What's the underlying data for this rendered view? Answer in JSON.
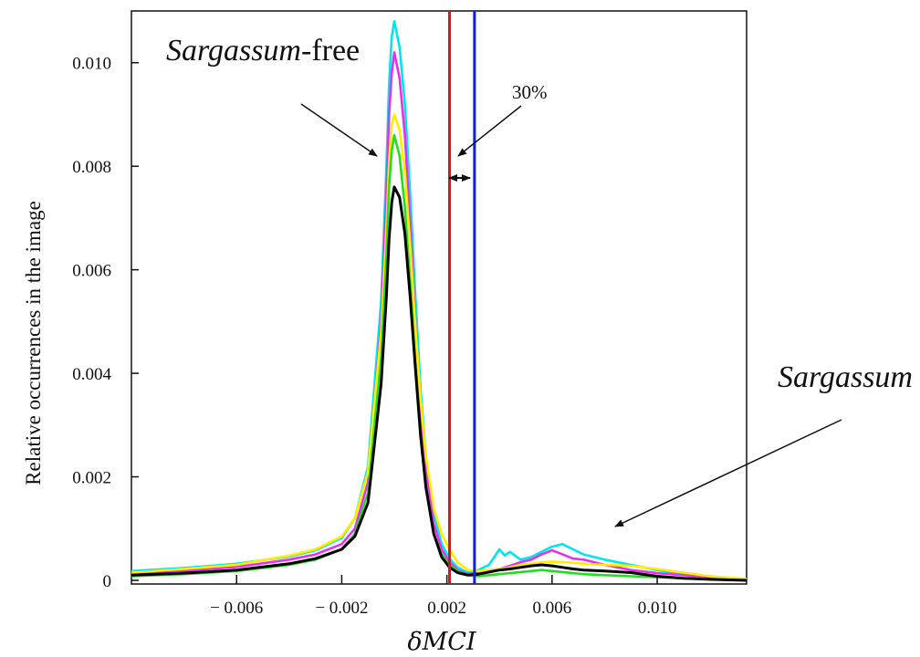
{
  "chart_data": {
    "type": "line",
    "title": "",
    "xlabel": "δMCI",
    "ylabel": "Relative occurrences in the image",
    "xlim": [
      -0.01,
      0.0134
    ],
    "ylim": [
      0,
      0.011
    ],
    "xticks": [
      -0.006,
      -0.002,
      0.002,
      0.006,
      0.01
    ],
    "xtick_labels": [
      "− 0.006",
      "− 0.002",
      "0.002",
      "0.006",
      "0.010"
    ],
    "yticks": [
      0,
      0.002,
      0.004,
      0.006,
      0.008,
      0.01
    ],
    "ytick_labels": [
      "0",
      "0.002",
      "0.004",
      "0.006",
      "0.008",
      "0.010"
    ],
    "grid": false,
    "series": [
      {
        "color": "#00e5ee",
        "width": 2.6,
        "x": [
          -0.01,
          -0.008,
          -0.006,
          -0.004,
          -0.003,
          -0.002,
          -0.0015,
          -0.001,
          -0.0005,
          -0.0003,
          -0.0002,
          -0.0001,
          0.0,
          0.0002,
          0.0004,
          0.0006,
          0.0008,
          0.001,
          0.0012,
          0.0015,
          0.0018,
          0.0021,
          0.0024,
          0.0028,
          0.0032,
          0.0036,
          0.004,
          0.0042,
          0.0044,
          0.0048,
          0.0052,
          0.0056,
          0.006,
          0.0064,
          0.0068,
          0.0072,
          0.008,
          0.009,
          0.01,
          0.011,
          0.012,
          0.0134
        ],
        "y": [
          0.00018,
          0.00024,
          0.00032,
          0.00046,
          0.00058,
          0.00082,
          0.0012,
          0.0022,
          0.0054,
          0.008,
          0.0096,
          0.0105,
          0.0108,
          0.0103,
          0.0092,
          0.0075,
          0.0055,
          0.0037,
          0.0024,
          0.0013,
          0.0007,
          0.00042,
          0.00025,
          0.00015,
          0.0002,
          0.0003,
          0.0006,
          0.00048,
          0.00055,
          0.0004,
          0.00045,
          0.00055,
          0.00065,
          0.0007,
          0.0006,
          0.0005,
          0.0004,
          0.0003,
          0.0002,
          0.00012,
          8e-05,
          2e-05
        ]
      },
      {
        "color": "#e830e8",
        "width": 2.6,
        "x": [
          -0.01,
          -0.008,
          -0.006,
          -0.004,
          -0.003,
          -0.002,
          -0.0015,
          -0.001,
          -0.0005,
          -0.0003,
          -0.0002,
          -0.0001,
          0.0,
          0.0002,
          0.0004,
          0.0006,
          0.0008,
          0.001,
          0.0012,
          0.0015,
          0.0018,
          0.0021,
          0.0024,
          0.0028,
          0.0032,
          0.0036,
          0.004,
          0.0044,
          0.0048,
          0.0052,
          0.0056,
          0.006,
          0.0064,
          0.0068,
          0.0072,
          0.008,
          0.009,
          0.01,
          0.011,
          0.012,
          0.0134
        ],
        "y": [
          0.00012,
          0.00018,
          0.00026,
          0.0004,
          0.0005,
          0.0007,
          0.001,
          0.0019,
          0.005,
          0.0075,
          0.009,
          0.0098,
          0.0102,
          0.0097,
          0.0086,
          0.0069,
          0.005,
          0.0033,
          0.0021,
          0.0011,
          0.0006,
          0.00035,
          0.0002,
          0.00012,
          0.00015,
          0.0002,
          0.00022,
          0.00028,
          0.00035,
          0.0004,
          0.0005,
          0.00058,
          0.0005,
          0.00042,
          0.0004,
          0.0003,
          0.0002,
          0.00014,
          0.0001,
          6e-05,
          2e-05
        ]
      },
      {
        "color": "#ffee00",
        "width": 2.6,
        "x": [
          -0.01,
          -0.008,
          -0.006,
          -0.004,
          -0.003,
          -0.002,
          -0.0015,
          -0.001,
          -0.0005,
          -0.0003,
          -0.0002,
          -0.0001,
          0.0,
          0.0002,
          0.0004,
          0.0006,
          0.0008,
          0.001,
          0.0012,
          0.0015,
          0.0018,
          0.0021,
          0.0024,
          0.0028,
          0.0032,
          0.0036,
          0.004,
          0.0044,
          0.0048,
          0.0052,
          0.0056,
          0.006,
          0.0064,
          0.0068,
          0.0072,
          0.008,
          0.009,
          0.01,
          0.011,
          0.012,
          0.0134
        ],
        "y": [
          0.00015,
          0.00022,
          0.0003,
          0.00048,
          0.0006,
          0.00085,
          0.0012,
          0.0021,
          0.0048,
          0.0068,
          0.0081,
          0.0088,
          0.009,
          0.0087,
          0.0079,
          0.0065,
          0.0049,
          0.0035,
          0.0024,
          0.0014,
          0.0009,
          0.0006,
          0.00035,
          0.0002,
          0.00018,
          0.0002,
          0.00022,
          0.00025,
          0.0003,
          0.00032,
          0.00035,
          0.00036,
          0.00035,
          0.00034,
          0.00032,
          0.0003,
          0.00028,
          0.00022,
          0.00015,
          8e-05,
          3e-05
        ]
      },
      {
        "color": "#22dd22",
        "width": 2.6,
        "x": [
          -0.01,
          -0.008,
          -0.006,
          -0.004,
          -0.003,
          -0.002,
          -0.0015,
          -0.001,
          -0.0005,
          -0.0003,
          -0.0002,
          -0.0001,
          0.0,
          0.0002,
          0.0004,
          0.0006,
          0.0008,
          0.001,
          0.0012,
          0.0015,
          0.0018,
          0.0021,
          0.0024,
          0.0028,
          0.0032,
          0.0036,
          0.004,
          0.0044,
          0.0048,
          0.0052,
          0.0056,
          0.006,
          0.0064,
          0.0068,
          0.0072,
          0.008,
          0.009,
          0.01,
          0.011,
          0.012,
          0.0134
        ],
        "y": [
          8e-05,
          0.00012,
          0.00018,
          0.0003,
          0.0004,
          0.0006,
          0.0009,
          0.0017,
          0.0043,
          0.0063,
          0.0076,
          0.0083,
          0.0086,
          0.0082,
          0.0072,
          0.0058,
          0.0042,
          0.0028,
          0.0018,
          0.0009,
          0.0005,
          0.0003,
          0.00018,
          0.0001,
          8e-05,
          0.0001,
          0.00012,
          0.00014,
          0.00016,
          0.00018,
          0.0002,
          0.00018,
          0.00016,
          0.00014,
          0.00012,
          0.0001,
          8e-05,
          6e-05,
          4e-05,
          2e-05,
          0.0
        ]
      },
      {
        "color": "#000000",
        "width": 3,
        "x": [
          -0.01,
          -0.008,
          -0.006,
          -0.004,
          -0.003,
          -0.002,
          -0.0015,
          -0.001,
          -0.0005,
          -0.0003,
          -0.0002,
          -0.0001,
          0.0,
          0.0002,
          0.0004,
          0.0006,
          0.0008,
          0.001,
          0.0012,
          0.0015,
          0.0018,
          0.0021,
          0.0024,
          0.0028,
          0.0032,
          0.0036,
          0.004,
          0.0044,
          0.0048,
          0.0052,
          0.0056,
          0.006,
          0.0064,
          0.0068,
          0.0072,
          0.008,
          0.009,
          0.01,
          0.011,
          0.012,
          0.0134
        ],
        "y": [
          0.0001,
          0.00014,
          0.0002,
          0.00032,
          0.00042,
          0.0006,
          0.00085,
          0.0015,
          0.0038,
          0.0055,
          0.0066,
          0.0073,
          0.0076,
          0.0074,
          0.0067,
          0.0055,
          0.0041,
          0.0028,
          0.0018,
          0.0009,
          0.00045,
          0.00025,
          0.00015,
          0.0001,
          0.00012,
          0.00016,
          0.0002,
          0.00022,
          0.00025,
          0.00028,
          0.0003,
          0.00028,
          0.00025,
          0.00022,
          0.0002,
          0.00018,
          0.00015,
          8e-05,
          4e-05,
          2e-05,
          0.0
        ]
      }
    ],
    "vlines": [
      {
        "x": 0.0021,
        "color": "#e81010"
      },
      {
        "x": 0.00305,
        "color": "#1020e0"
      }
    ],
    "annotations": {
      "sargassum_free_italic": "Sargassum",
      "sargassum_free_suffix": "-free",
      "percent": "30%",
      "sargassum": "Sargassum"
    }
  }
}
